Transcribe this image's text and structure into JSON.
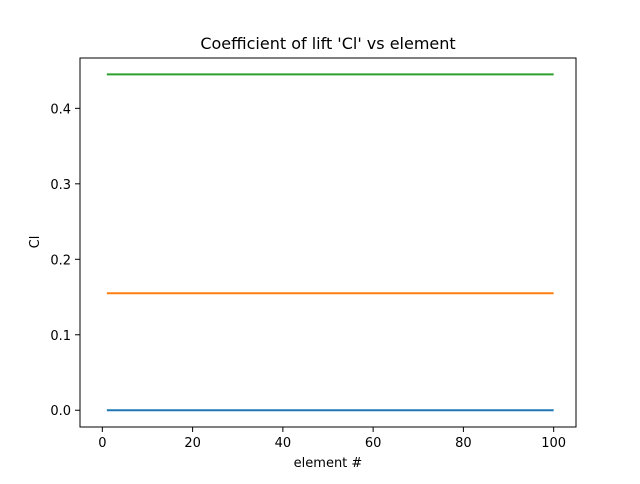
{
  "chart_data": {
    "type": "line",
    "title": "Coefficient of lift 'Cl' vs element",
    "xlabel": "element #",
    "ylabel": "Cl",
    "xlim": [
      -4.95,
      104.95
    ],
    "ylim": [
      -0.0222,
      0.4667
    ],
    "xticks": [
      0,
      20,
      40,
      60,
      80,
      100
    ],
    "xtick_labels": [
      "0",
      "20",
      "40",
      "60",
      "80",
      "100"
    ],
    "yticks": [
      0.0,
      0.1,
      0.2,
      0.3,
      0.4
    ],
    "ytick_labels": [
      "0.0",
      "0.1",
      "0.2",
      "0.3",
      "0.4"
    ],
    "grid": false,
    "legend": "none",
    "series": [
      {
        "x": [
          1,
          100
        ],
        "values": [
          0.0,
          0.0
        ],
        "color": "#1f77b4"
      },
      {
        "x": [
          1,
          100
        ],
        "values": [
          0.155,
          0.155
        ],
        "color": "#ff7f0e"
      },
      {
        "x": [
          1,
          100
        ],
        "values": [
          0.445,
          0.445
        ],
        "color": "#2ca02c"
      }
    ]
  }
}
